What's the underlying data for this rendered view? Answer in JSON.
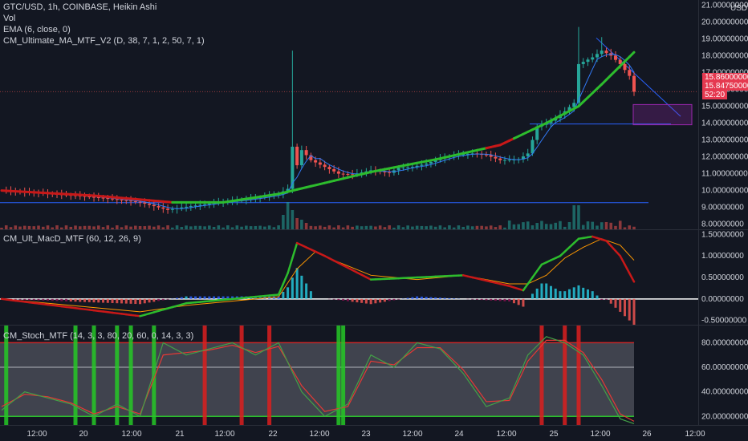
{
  "legend": {
    "main": [
      "GTC/USD, 1h, COINBASE, Heikin Ashi",
      "Vol",
      "EMA (6, close, 0)",
      "CM_Ultimate_MA_MTF_V2 (D, 38, 7, 1, 2, 50, 7, 1)"
    ],
    "macd": "CM_Ult_MacD_MTF (60, 12, 26, 9)",
    "stoch": "CM_Stoch_MTF (14, 3, 3, 80, 20, 60, 0, 14, 3, 3)"
  },
  "axis": {
    "currency": "USD",
    "price_ticks": [
      "21.00000000",
      "20.00000000",
      "19.00000000",
      "18.00000000",
      "17.00000000",
      "16.00000000",
      "15.00000000",
      "14.00000000",
      "13.00000000",
      "12.00000000",
      "11.00000000",
      "10.00000000",
      "9.00000000",
      "8.00000000"
    ],
    "macd_ticks": [
      "1.50000000",
      "1.00000000",
      "0.50000000",
      "0.00000000",
      "-0.50000000"
    ],
    "stoch_ticks": [
      "80.00000000",
      "60.00000000",
      "40.00000000",
      "20.00000000"
    ],
    "time_ticks": [
      "12:00",
      "20",
      "12:00",
      "21",
      "12:00",
      "22",
      "12:00",
      "23",
      "12:00",
      "24",
      "12:00",
      "25",
      "12:00",
      "26",
      "12:00"
    ]
  },
  "price_tags": {
    "last": "15.86000000",
    "ema": "15.84750000",
    "countdown": "52:20"
  },
  "colors": {
    "background": "#131722",
    "up": "#26a69a",
    "down": "#ef5350",
    "ma_up": "#2dbc2d",
    "ma_down": "#c81818",
    "trendline": "#2962ff",
    "stoch_band": "#5d606b"
  },
  "chart_data": [
    {
      "type": "candlestick",
      "style": "Heikin Ashi",
      "symbol": "GTC/USD",
      "interval": "1h",
      "ylim": [
        7.7,
        21.3
      ],
      "close_path": [
        [
          0,
          10.0
        ],
        [
          8,
          9.85
        ],
        [
          16,
          9.7
        ],
        [
          22,
          9.55
        ],
        [
          27,
          9.4
        ],
        [
          30,
          9.3
        ],
        [
          34,
          9.0
        ],
        [
          36,
          8.85
        ],
        [
          39,
          9.0
        ],
        [
          43,
          9.15
        ],
        [
          47,
          9.3
        ],
        [
          52,
          9.45
        ],
        [
          56,
          9.6
        ],
        [
          60,
          9.8
        ],
        [
          62,
          10.1
        ],
        [
          63,
          12.6
        ],
        [
          64,
          11.5
        ],
        [
          65,
          12.4
        ],
        [
          67,
          11.8
        ],
        [
          70,
          11.4
        ],
        [
          73,
          11.0
        ],
        [
          76,
          10.95
        ],
        [
          80,
          11.2
        ],
        [
          84,
          11.05
        ],
        [
          86,
          11.35
        ],
        [
          89,
          11.4
        ],
        [
          92,
          11.6
        ],
        [
          95,
          11.9
        ],
        [
          98,
          12.1
        ],
        [
          102,
          12.2
        ],
        [
          105,
          12.1
        ],
        [
          108,
          11.8
        ],
        [
          112,
          11.85
        ],
        [
          114,
          12.2
        ],
        [
          116,
          13.8
        ],
        [
          118,
          14.0
        ],
        [
          120,
          14.3
        ],
        [
          122,
          14.7
        ],
        [
          124,
          15.2
        ],
        [
          125,
          17.5
        ],
        [
          128,
          17.9
        ],
        [
          130,
          18.3
        ],
        [
          132,
          18.0
        ],
        [
          134,
          17.5
        ],
        [
          136,
          16.8
        ],
        [
          137,
          15.86
        ]
      ],
      "ema_6_last": 15.8475,
      "ma_path": [
        [
          0,
          10.0
        ],
        [
          20,
          9.7
        ],
        [
          37,
          9.3
        ],
        [
          48,
          9.3
        ],
        [
          60,
          9.8
        ],
        [
          80,
          11.1
        ],
        [
          95,
          11.9
        ],
        [
          108,
          12.7
        ],
        [
          118,
          14.0
        ],
        [
          125,
          15.0
        ],
        [
          130,
          16.3
        ],
        [
          137,
          18.2
        ]
      ],
      "last_price": 15.86
    },
    {
      "type": "line",
      "name": "CM_Ult_MacD_MTF",
      "ylim": [
        -0.6,
        1.6
      ],
      "series": [
        {
          "name": "macd",
          "points": [
            [
              0,
              0.0
            ],
            [
              30,
              -0.4
            ],
            [
              40,
              -0.1
            ],
            [
              60,
              0.1
            ],
            [
              62,
              0.6
            ],
            [
              64,
              1.3
            ],
            [
              66,
              1.2
            ],
            [
              70,
              1.0
            ],
            [
              80,
              0.45
            ],
            [
              90,
              0.5
            ],
            [
              100,
              0.55
            ],
            [
              110,
              0.3
            ],
            [
              113,
              0.2
            ],
            [
              117,
              0.8
            ],
            [
              121,
              1.0
            ],
            [
              125,
              1.4
            ],
            [
              128,
              1.45
            ],
            [
              131,
              1.35
            ],
            [
              134,
              1.0
            ],
            [
              137,
              0.4
            ]
          ]
        },
        {
          "name": "signal",
          "points": [
            [
              0,
              0.0
            ],
            [
              30,
              -0.3
            ],
            [
              40,
              -0.15
            ],
            [
              60,
              0.05
            ],
            [
              64,
              0.7
            ],
            [
              68,
              1.1
            ],
            [
              72,
              0.9
            ],
            [
              80,
              0.55
            ],
            [
              90,
              0.45
            ],
            [
              100,
              0.55
            ],
            [
              110,
              0.35
            ],
            [
              114,
              0.35
            ],
            [
              118,
              0.55
            ],
            [
              122,
              0.95
            ],
            [
              126,
              1.2
            ],
            [
              130,
              1.4
            ],
            [
              134,
              1.25
            ],
            [
              137,
              0.9
            ]
          ]
        }
      ]
    },
    {
      "type": "line",
      "name": "CM_Stoch_MTF",
      "ylim": [
        13,
        94
      ],
      "bands": [
        80,
        60,
        20
      ],
      "series": [
        {
          "name": "k",
          "points": [
            [
              0,
              25
            ],
            [
              5,
              40
            ],
            [
              10,
              35
            ],
            [
              15,
              30
            ],
            [
              20,
              20
            ],
            [
              25,
              30
            ],
            [
              30,
              20
            ],
            [
              35,
              80
            ],
            [
              40,
              70
            ],
            [
              45,
              75
            ],
            [
              50,
              80
            ],
            [
              55,
              70
            ],
            [
              60,
              80
            ],
            [
              65,
              40
            ],
            [
              70,
              20
            ],
            [
              75,
              30
            ],
            [
              80,
              70
            ],
            [
              85,
              60
            ],
            [
              90,
              80
            ],
            [
              95,
              75
            ],
            [
              100,
              55
            ],
            [
              105,
              28
            ],
            [
              110,
              35
            ],
            [
              114,
              70
            ],
            [
              118,
              85
            ],
            [
              122,
              80
            ],
            [
              126,
              70
            ],
            [
              130,
              45
            ],
            [
              134,
              18
            ],
            [
              137,
              14
            ]
          ]
        },
        {
          "name": "d",
          "points": [
            [
              0,
              28
            ],
            [
              5,
              38
            ],
            [
              10,
              36
            ],
            [
              15,
              31
            ],
            [
              20,
              22
            ],
            [
              25,
              28
            ],
            [
              30,
              22
            ],
            [
              35,
              70
            ],
            [
              40,
              72
            ],
            [
              45,
              74
            ],
            [
              50,
              78
            ],
            [
              55,
              72
            ],
            [
              60,
              77
            ],
            [
              65,
              45
            ],
            [
              70,
              24
            ],
            [
              75,
              28
            ],
            [
              80,
              65
            ],
            [
              85,
              62
            ],
            [
              90,
              76
            ],
            [
              95,
              76
            ],
            [
              100,
              58
            ],
            [
              105,
              32
            ],
            [
              110,
              33
            ],
            [
              114,
              65
            ],
            [
              118,
              82
            ],
            [
              122,
              82
            ],
            [
              126,
              72
            ],
            [
              130,
              50
            ],
            [
              134,
              22
            ],
            [
              137,
              16
            ]
          ]
        }
      ]
    }
  ]
}
